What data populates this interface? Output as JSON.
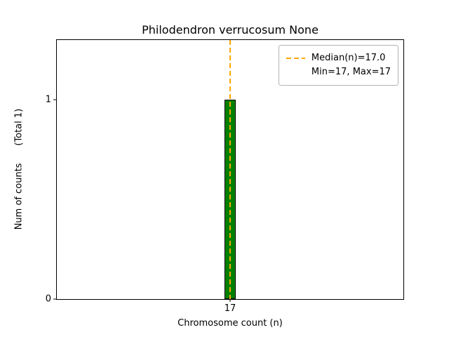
{
  "chart_data": {
    "type": "bar",
    "title": "Philodendron verrucosum None",
    "xlabel": "Chromosome count (n)",
    "ylabel": "Num of counts      (Total 1)",
    "categories": [
      "17"
    ],
    "values": [
      1
    ],
    "total_counts": 1,
    "ylim": [
      0,
      1.3
    ],
    "yticks": [
      "0",
      "1"
    ],
    "xticks": [
      "17"
    ],
    "median_n": 17.0,
    "min_n": 17,
    "max_n": 17,
    "legend_labels": [
      "Median(n)=17.0",
      "Min=17, Max=17"
    ],
    "legend_position": "upper right",
    "grid": false,
    "colors": {
      "bar_fill": "#008000",
      "bar_edge": "#000000",
      "median_line": "#ffa500",
      "axis": "#000000",
      "background": "#ffffff"
    }
  }
}
